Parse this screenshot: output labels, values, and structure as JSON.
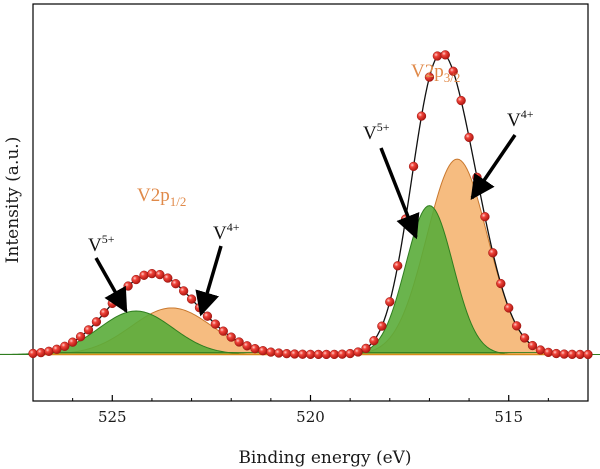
{
  "chart_data": {
    "type": "line",
    "xlabel": "Binding energy (eV)",
    "ylabel": "Intensity (a.u.)",
    "xlim": [
      527,
      513
    ],
    "x_reversed": true,
    "ylim": [
      -0.15,
      1.13
    ],
    "y_ticks_shown": false,
    "grid": false,
    "x_ticks": [
      525,
      520,
      515
    ],
    "colors": {
      "data_points": "#e8332b",
      "envelope": "#111111",
      "v5_fill": "#5aac3a",
      "v5_edge": "#2f7d1f",
      "v4_fill": "#f5b06a",
      "v4_edge": "#c9782e",
      "baseline": "#d98c1a",
      "label_orange": "#e08a4a"
    },
    "peaks": [
      {
        "label": "V5+",
        "group": "V2p1/2",
        "center": 524.4,
        "height": 0.14,
        "fwhm": 2.2
      },
      {
        "label": "V4+",
        "group": "V2p1/2",
        "center": 523.5,
        "height": 0.15,
        "fwhm": 2.4
      },
      {
        "label": "V5+",
        "group": "V2p3/2",
        "center": 517.0,
        "height": 0.48,
        "fwhm": 1.4
      },
      {
        "label": "V4+",
        "group": "V2p3/2",
        "center": 516.3,
        "height": 0.63,
        "fwhm": 1.8
      }
    ],
    "baseline_value": 0.0,
    "measured_step": 0.2,
    "annotations": [
      {
        "text": "V2p",
        "sub": "3/2",
        "color": "orange"
      },
      {
        "text": "V2p",
        "sub": "1/2",
        "color": "orange"
      },
      {
        "text": "V",
        "sup": "5+"
      },
      {
        "text": "V",
        "sup": "4+"
      },
      {
        "text": "V",
        "sup": "5+"
      },
      {
        "text": "V",
        "sup": "4+"
      }
    ]
  }
}
